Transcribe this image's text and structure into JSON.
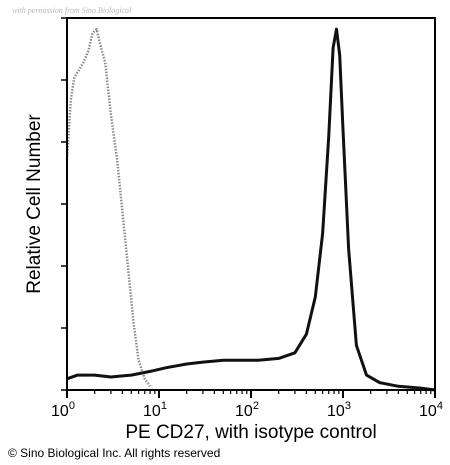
{
  "watermark": "with permission from Sino Biological",
  "copyright": "© Sino Biological Inc. All rights reserved",
  "colors": {
    "stained": "#111111",
    "isotype": "#8a8a8a",
    "axis": "#000000"
  },
  "chart_data": {
    "type": "line",
    "xlabel": "PE CD27, with isotype control",
    "ylabel": "Relative Cell Number",
    "x_scale": "log",
    "xlim": [
      1,
      10000
    ],
    "ylim": [
      0,
      100
    ],
    "grid": false,
    "x_ticks": [
      {
        "value": 1,
        "base": "10",
        "exp": "0"
      },
      {
        "value": 10,
        "base": "10",
        "exp": "1"
      },
      {
        "value": 100,
        "base": "10",
        "exp": "2"
      },
      {
        "value": 1000,
        "base": "10",
        "exp": "3"
      },
      {
        "value": 10000,
        "base": "10",
        "exp": "4"
      }
    ],
    "series": [
      {
        "style": "dotted",
        "x": [
          1.0,
          1.1,
          1.2,
          1.35,
          1.5,
          1.7,
          1.9,
          2.1,
          2.35,
          2.6,
          3.0,
          3.5,
          4.0,
          4.6,
          5.3,
          6.0,
          7.0,
          8.0
        ],
        "y": [
          62,
          78,
          84,
          86,
          88,
          91,
          96,
          97,
          92,
          88,
          74,
          62,
          48,
          33,
          18,
          8,
          3,
          1
        ]
      },
      {
        "style": "solid",
        "x": [
          1.0,
          1.3,
          2,
          3,
          5,
          8,
          12,
          20,
          30,
          50,
          80,
          120,
          200,
          300,
          400,
          500,
          600,
          700,
          780,
          850,
          920,
          1000,
          1150,
          1400,
          1800,
          2500,
          4000,
          7000,
          10000
        ],
        "y": [
          3,
          4,
          4,
          3.5,
          4,
          5,
          6,
          7,
          7.5,
          8,
          8,
          8,
          8.5,
          10,
          15,
          25,
          42,
          68,
          92,
          97,
          90,
          70,
          38,
          12,
          4,
          2,
          1,
          0.5,
          0
        ]
      }
    ]
  }
}
